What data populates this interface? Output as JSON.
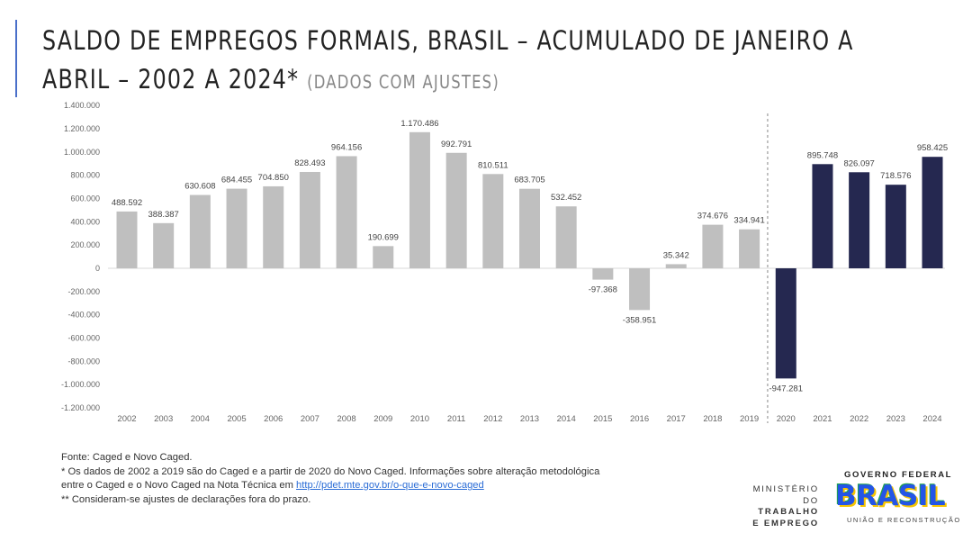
{
  "title_line1": "SALDO DE EMPREGOS FORMAIS, BRASIL – ACUMULADO DE JANEIRO A",
  "title_line2": "ABRIL – 2002 A 2024*",
  "title_note": "(DADOS COM AJUSTES)",
  "chart_data": {
    "type": "bar",
    "title": "SALDO DE EMPREGOS FORMAIS, BRASIL – ACUMULADO DE JANEIRO A ABRIL – 2002 A 2024* (DADOS COM AJUSTES)",
    "categories": [
      "2002",
      "2003",
      "2004",
      "2005",
      "2006",
      "2007",
      "2008",
      "2009",
      "2010",
      "2011",
      "2012",
      "2013",
      "2014",
      "2015",
      "2016",
      "2017",
      "2018",
      "2019",
      "2020",
      "2021",
      "2022",
      "2023",
      "2024"
    ],
    "values": [
      488592,
      388387,
      630608,
      684455,
      704850,
      828493,
      964156,
      190699,
      1170486,
      992791,
      810511,
      683705,
      532452,
      -97368,
      -358951,
      35342,
      374676,
      334941,
      -947281,
      895748,
      826097,
      718576,
      958425
    ],
    "data_labels": [
      "488.592",
      "388.387",
      "630.608",
      "684.455",
      "704.850",
      "828.493",
      "964.156",
      "190.699",
      "1.170.486",
      "992.791",
      "810.511",
      "683.705",
      "532.452",
      "-97.368",
      "-358.951",
      "35.342",
      "374.676",
      "334.941",
      "-947.281",
      "895.748",
      "826.097",
      "718.576",
      "958.425"
    ],
    "ylim": [
      -1200000,
      1400000
    ],
    "yticks": [
      1400000,
      1200000,
      1000000,
      800000,
      600000,
      400000,
      200000,
      0,
      -200000,
      -400000,
      -600000,
      -800000,
      -1000000,
      -1200000
    ],
    "ytick_labels": [
      "1.400.000",
      "1.200.000",
      "1.000.000",
      "800.000",
      "600.000",
      "400.000",
      "200.000",
      "0",
      "-200.000",
      "-400.000",
      "-600.000",
      "-800.000",
      "-1.000.000",
      "-1.200.000"
    ],
    "xlabel": "",
    "ylabel": "",
    "grid": false,
    "legend": "none",
    "colors": {
      "caged": "#bfbfbf",
      "novo_caged": "#252850",
      "divider": "#888888"
    },
    "series_split": "2020",
    "divider": "dashed vertical line between 2019 and 2020"
  },
  "footer": {
    "line1": "Fonte: Caged e Novo Caged.",
    "line2": "* Os dados de 2002 a 2019 são do Caged e a partir de 2020 do Novo Caged. Informações sobre alteração metodológica",
    "line3_pre": "entre o Caged e o Novo Caged na Nota Técnica em ",
    "link": "http://pdet.mte.gov.br/o-que-e-novo-caged",
    "line4": "** Consideram-se ajustes de declarações fora do prazo."
  },
  "logos": {
    "ministry_line1": "MINISTÉRIO DO",
    "ministry_line2": "TRABALHO",
    "ministry_line3": "E EMPREGO",
    "gov_federal": "GOVERNO FEDERAL",
    "brasil": "BRASIL",
    "slogan": "UNIÃO E RECONSTRUÇÃO"
  }
}
